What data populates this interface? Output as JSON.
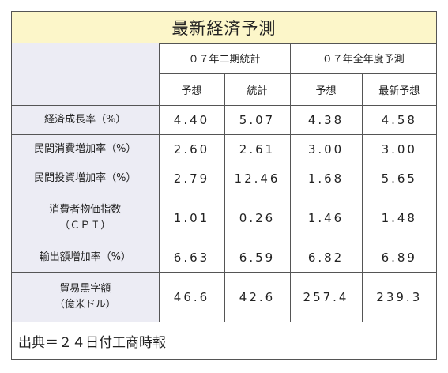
{
  "title": "最新経済予測",
  "headers": {
    "group1": "０７年二期統計",
    "group2": "０７年全年度予測",
    "sub": [
      "予想",
      "統計",
      "予想",
      "最新予想"
    ]
  },
  "rows": [
    {
      "label": [
        "経済成長率（%）"
      ],
      "values": [
        "4.40",
        "5.07",
        "4.38",
        "4.58"
      ]
    },
    {
      "label": [
        "民間消費増加率（%）"
      ],
      "values": [
        "2.60",
        "2.61",
        "3.00",
        "3.00"
      ]
    },
    {
      "label": [
        "民間投資増加率（%）"
      ],
      "values": [
        "2.79",
        "12.46",
        "1.68",
        "5.65"
      ]
    },
    {
      "label": [
        "消費者物価指数",
        "（ＣＰＩ）"
      ],
      "values": [
        "1.01",
        "0.26",
        "1.46",
        "1.48"
      ]
    },
    {
      "label": [
        "輸出額増加率（%）"
      ],
      "values": [
        "6.63",
        "6.59",
        "6.82",
        "6.89"
      ]
    },
    {
      "label": [
        "貿易黒字額",
        "（億米ドル）"
      ],
      "values": [
        "46.6",
        "42.6",
        "257.4",
        "239.3"
      ]
    }
  ],
  "footer": "出典＝２４日付工商時報"
}
